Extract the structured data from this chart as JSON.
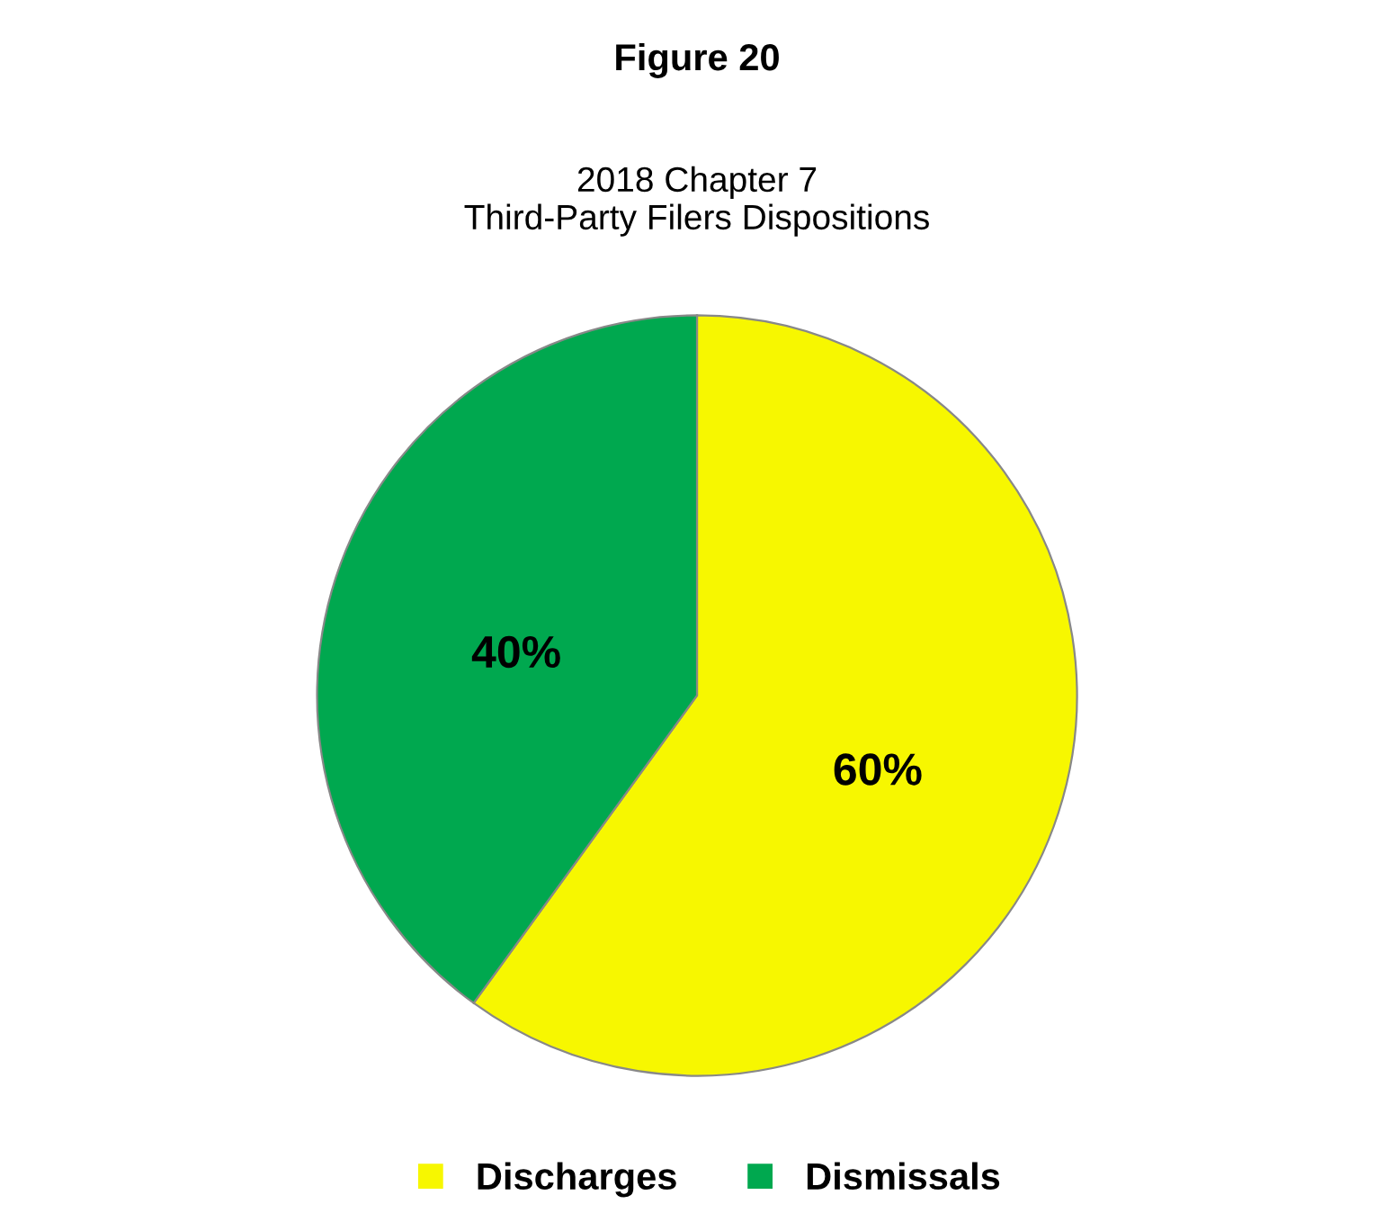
{
  "chart_data": {
    "type": "pie",
    "title": "Figure 20",
    "subtitle": "2018 Chapter 7\nThird-Party Filers Dispositions",
    "categories": [
      "Discharges",
      "Dismissals"
    ],
    "values": [
      60,
      40
    ],
    "colors": [
      "#f7f700",
      "#00a84f"
    ],
    "value_labels": [
      "60%",
      "40%"
    ],
    "legend": "bottom"
  }
}
